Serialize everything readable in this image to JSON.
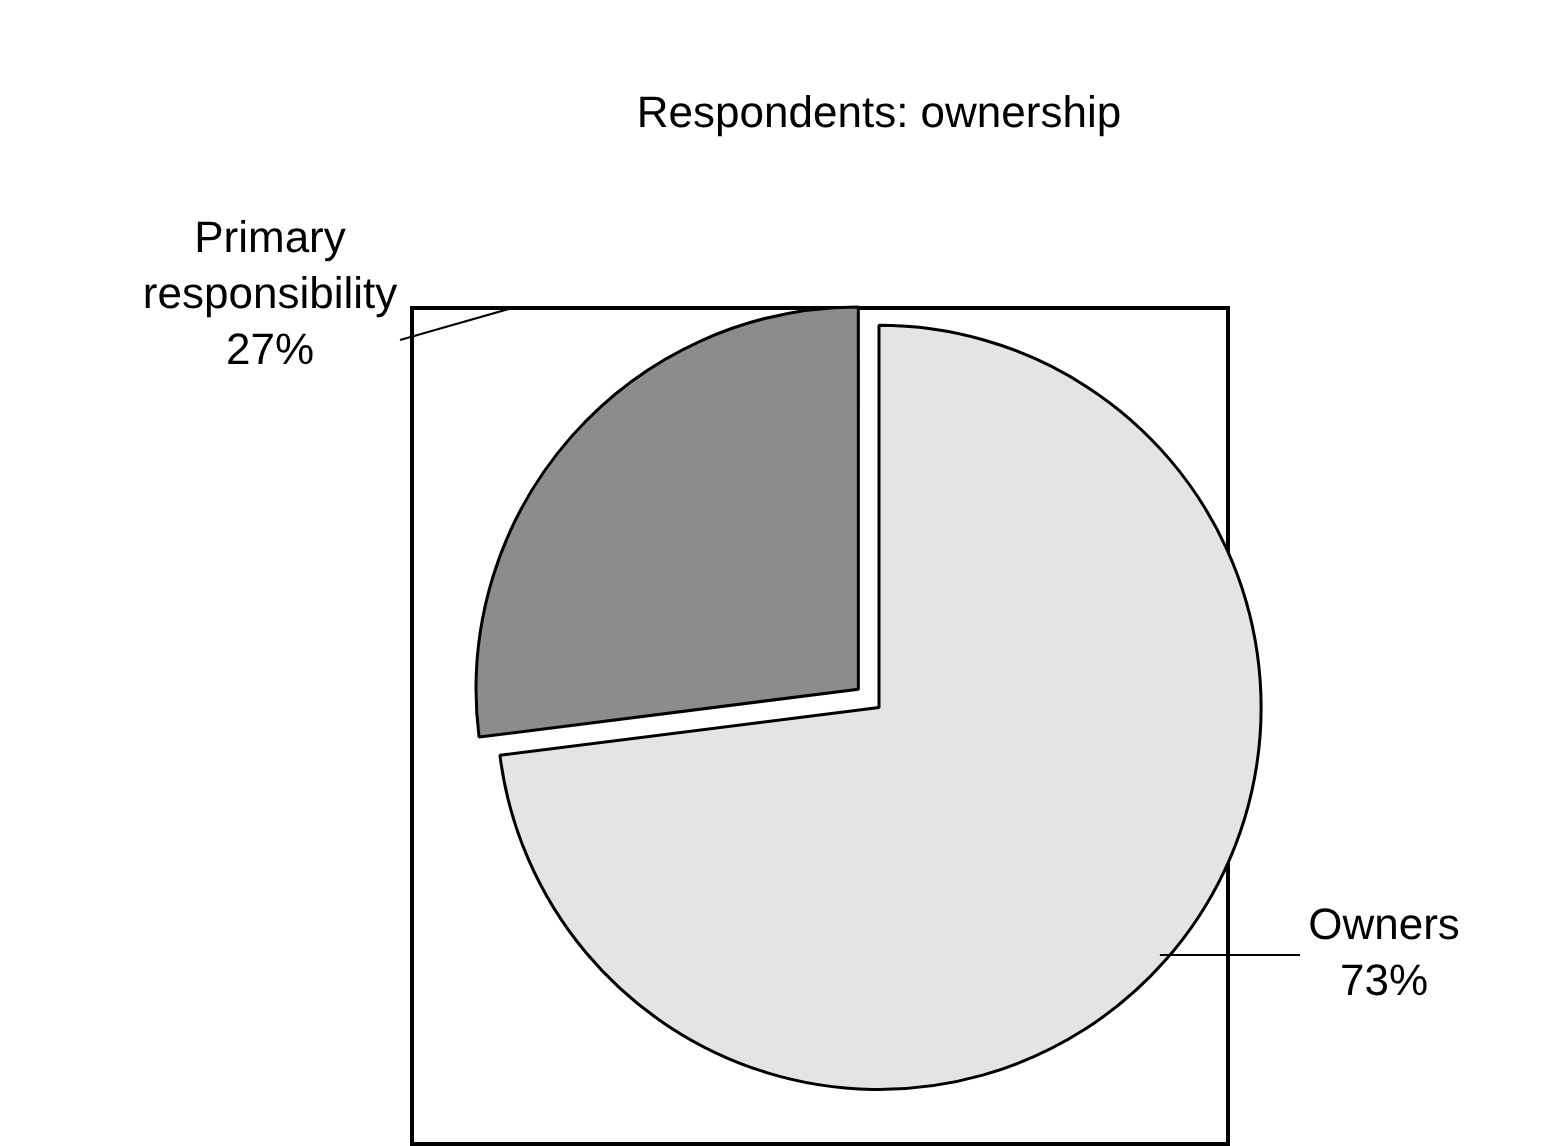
{
  "chart_data": {
    "type": "pie",
    "title": "Respondents: ownership",
    "categories": [
      "Owners",
      "Primary responsibility"
    ],
    "values": [
      73,
      27
    ],
    "value_labels": [
      "73%",
      "27%"
    ],
    "colors": [
      "#e4e4e4",
      "#8c8c8c"
    ],
    "legend": false
  }
}
